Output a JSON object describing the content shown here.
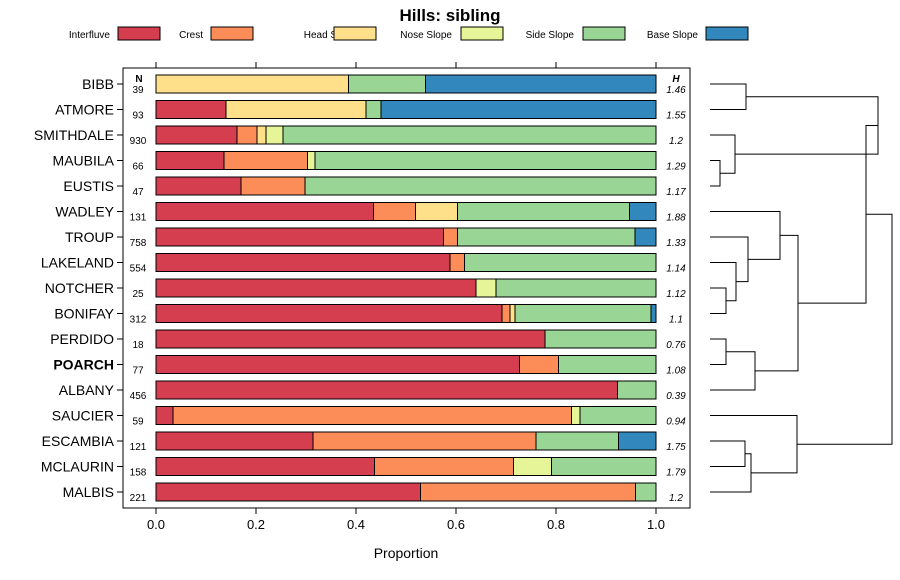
{
  "chart_data": {
    "type": "bar",
    "orientation": "horizontal-stacked",
    "title": "Hills: sibling",
    "xlabel": "Proportion",
    "ylabel": "",
    "xlim": [
      0,
      1
    ],
    "x_ticks": [
      "0.0",
      "0.2",
      "0.4",
      "0.6",
      "0.8",
      "1.0"
    ],
    "n_header": "N",
    "h_header": "H",
    "highlight": "POARCH",
    "legend_position": "top",
    "series": [
      {
        "name": "Interfluve",
        "color": "#d53e4f"
      },
      {
        "name": "Crest",
        "color": "#fc8d59"
      },
      {
        "name": "Head Slope",
        "color": "#fee08b"
      },
      {
        "name": "Nose Slope",
        "color": "#e6f598"
      },
      {
        "name": "Side Slope",
        "color": "#99d594"
      },
      {
        "name": "Base Slope",
        "color": "#3288bd"
      }
    ],
    "rows": [
      {
        "label": "BIBB",
        "n": "39",
        "h": "1.46",
        "values": [
          0.0,
          0.0,
          0.385,
          0.0,
          0.154,
          0.461
        ]
      },
      {
        "label": "ATMORE",
        "n": "93",
        "h": "1.55",
        "values": [
          0.14,
          0.0,
          0.28,
          0.0,
          0.03,
          0.55
        ]
      },
      {
        "label": "SMITHDALE",
        "n": "930",
        "h": "1.2",
        "values": [
          0.162,
          0.04,
          0.018,
          0.034,
          0.746,
          0.0
        ]
      },
      {
        "label": "MAUBILA",
        "n": "66",
        "h": "1.29",
        "values": [
          0.136,
          0.167,
          0.0,
          0.015,
          0.682,
          0.0
        ]
      },
      {
        "label": "EUSTIS",
        "n": "47",
        "h": "1.17",
        "values": [
          0.17,
          0.128,
          0.0,
          0.0,
          0.702,
          0.0
        ]
      },
      {
        "label": "WADLEY",
        "n": "131",
        "h": "1.88",
        "values": [
          0.435,
          0.084,
          0.084,
          0.0,
          0.344,
          0.053
        ]
      },
      {
        "label": "TROUP",
        "n": "758",
        "h": "1.33",
        "values": [
          0.575,
          0.028,
          0.0,
          0.0,
          0.355,
          0.042
        ]
      },
      {
        "label": "LAKELAND",
        "n": "554",
        "h": "1.14",
        "values": [
          0.588,
          0.029,
          0.0,
          0.0,
          0.383,
          0.0
        ]
      },
      {
        "label": "NOTCHER",
        "n": "25",
        "h": "1.12",
        "values": [
          0.64,
          0.0,
          0.0,
          0.04,
          0.32,
          0.0
        ]
      },
      {
        "label": "BONIFAY",
        "n": "312",
        "h": "1.1",
        "values": [
          0.692,
          0.016,
          0.01,
          0.0,
          0.272,
          0.01
        ]
      },
      {
        "label": "PERDIDO",
        "n": "18",
        "h": "0.76",
        "values": [
          0.778,
          0.0,
          0.0,
          0.0,
          0.222,
          0.0
        ]
      },
      {
        "label": "POARCH",
        "n": "77",
        "h": "1.08",
        "values": [
          0.727,
          0.078,
          0.0,
          0.0,
          0.195,
          0.0
        ]
      },
      {
        "label": "ALBANY",
        "n": "456",
        "h": "0.39",
        "values": [
          0.923,
          0.0,
          0.0,
          0.0,
          0.077,
          0.0
        ]
      },
      {
        "label": "SAUCIER",
        "n": "59",
        "h": "0.94",
        "values": [
          0.034,
          0.797,
          0.0,
          0.017,
          0.152,
          0.0
        ]
      },
      {
        "label": "ESCAMBIA",
        "n": "121",
        "h": "1.75",
        "values": [
          0.314,
          0.446,
          0.0,
          0.0,
          0.165,
          0.075
        ]
      },
      {
        "label": "MCLAURIN",
        "n": "158",
        "h": "1.79",
        "values": [
          0.437,
          0.278,
          0.0,
          0.076,
          0.209,
          0.0
        ]
      },
      {
        "label": "MALBIS",
        "n": "221",
        "h": "1.2",
        "values": [
          0.529,
          0.43,
          0.0,
          0.0,
          0.041,
          0.0
        ]
      }
    ]
  }
}
